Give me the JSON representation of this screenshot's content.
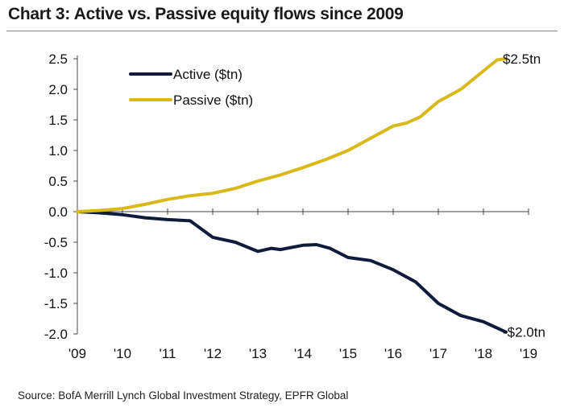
{
  "header": {
    "title": "Chart 3: Active vs. Passive equity flows since 2009"
  },
  "footer": {
    "source": "Source: BofA Merrill Lynch Global Investment Strategy, EPFR Global"
  },
  "colors": {
    "active": "#101a3a",
    "passive": "#d9b81a",
    "axis": "#444444"
  },
  "chart_data": {
    "type": "line",
    "title": "Chart 3: Active vs. Passive equity flows since 2009",
    "xlabel": "",
    "ylabel": "",
    "x_tick_labels": [
      "'09",
      "'10",
      "'11",
      "'12",
      "'13",
      "'14",
      "'15",
      "'16",
      "'17",
      "'18",
      "'19"
    ],
    "x_tick_values": [
      2009,
      2010,
      2011,
      2012,
      2013,
      2014,
      2015,
      2016,
      2017,
      2018,
      2019
    ],
    "y_ticks": [
      2.5,
      2.0,
      1.5,
      1.0,
      0.5,
      0.0,
      -0.5,
      -1.0,
      -1.5,
      -2.0
    ],
    "y_tick_labels": [
      "2.5",
      "2.0",
      "1.5",
      "1.0",
      "0.5",
      "0.0",
      "-0.5",
      "-1.0",
      "-1.5",
      "-2.0"
    ],
    "xlim": [
      2009,
      2019
    ],
    "ylim": [
      -2.0,
      2.5
    ],
    "grid": false,
    "legend_position": "top-left",
    "series": [
      {
        "name": "Active ($tn)",
        "end_label": "-$2.0tn",
        "x": [
          2009.0,
          2009.5,
          2010.0,
          2010.5,
          2011.0,
          2011.5,
          2012.0,
          2012.5,
          2013.0,
          2013.3,
          2013.5,
          2014.0,
          2014.3,
          2014.6,
          2015.0,
          2015.5,
          2016.0,
          2016.5,
          2017.0,
          2017.5,
          2018.0,
          2018.5
        ],
        "values": [
          0.0,
          -0.02,
          -0.05,
          -0.1,
          -0.13,
          -0.15,
          -0.42,
          -0.5,
          -0.65,
          -0.6,
          -0.62,
          -0.55,
          -0.54,
          -0.6,
          -0.75,
          -0.8,
          -0.95,
          -1.15,
          -1.5,
          -1.7,
          -1.8,
          -1.97
        ]
      },
      {
        "name": "Passive ($tn)",
        "end_label": "$2.5tn",
        "x": [
          2009.0,
          2009.5,
          2010.0,
          2010.5,
          2011.0,
          2011.5,
          2012.0,
          2012.5,
          2013.0,
          2013.5,
          2014.0,
          2014.5,
          2015.0,
          2015.5,
          2016.0,
          2016.3,
          2016.6,
          2017.0,
          2017.5,
          2018.0,
          2018.3,
          2018.5
        ],
        "values": [
          0.0,
          0.02,
          0.05,
          0.12,
          0.2,
          0.26,
          0.3,
          0.38,
          0.5,
          0.6,
          0.72,
          0.85,
          1.0,
          1.2,
          1.4,
          1.45,
          1.55,
          1.8,
          2.0,
          2.3,
          2.48,
          2.5
        ]
      }
    ]
  }
}
